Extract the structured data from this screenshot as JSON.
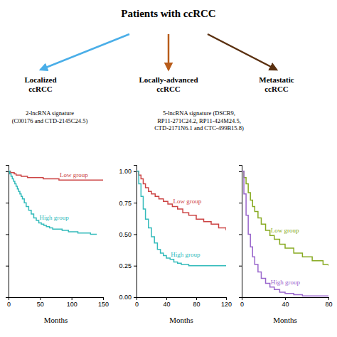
{
  "chart_data": [
    {
      "type": "diagram",
      "title": "Patients with ccRCC",
      "categories": [
        "Localized\nccRCC",
        "Locally-advanced\nccRCC",
        "Metastatic\nccRCC"
      ],
      "colors": [
        "#4aaee8",
        "#b85c1a",
        "#5a3010"
      ],
      "annotations": [
        "2-lncRNA signature\n(C00176 and CTD-2145C24.5)",
        "5-lncRNA signature (DSCR9,\nRP11-271C24.2, RP11-424M24.5,\nCTD-2171N6.1 and CTC-499B15.8)"
      ]
    },
    {
      "type": "step",
      "xlabel": "Months",
      "xlim": [
        0,
        150
      ],
      "ylim": [
        0,
        1.05
      ],
      "xticks": [
        0,
        50,
        100,
        150
      ],
      "yticks": [
        0.25,
        0.5,
        0.75,
        1.0
      ],
      "tick_labels": "x",
      "series": [
        {
          "name": "Low group",
          "color": "#cc4444",
          "x": [
            0,
            3,
            6,
            9,
            12,
            16,
            20,
            25,
            30,
            35,
            40,
            45,
            50,
            55,
            60,
            65,
            70,
            75,
            80,
            85,
            90,
            95,
            100,
            105,
            110,
            115,
            120,
            125,
            130,
            135,
            140,
            145,
            150
          ],
          "values": [
            1.0,
            0.99,
            0.99,
            0.98,
            0.97,
            0.97,
            0.96,
            0.96,
            0.95,
            0.95,
            0.95,
            0.95,
            0.95,
            0.94,
            0.94,
            0.94,
            0.94,
            0.94,
            0.93,
            0.93,
            0.93,
            0.93,
            0.93,
            0.93,
            0.93,
            0.93,
            0.93,
            0.93,
            0.93,
            0.93,
            0.93,
            0.93,
            0.93
          ]
        },
        {
          "name": "High group",
          "color": "#33bbbb",
          "x": [
            0,
            2,
            4,
            6,
            8,
            10,
            12,
            14,
            16,
            18,
            20,
            22,
            25,
            28,
            32,
            36,
            40,
            44,
            48,
            52,
            56,
            60,
            65,
            70,
            75,
            80,
            85,
            90,
            95,
            100,
            110,
            120,
            130,
            140
          ],
          "values": [
            1.0,
            0.98,
            0.96,
            0.94,
            0.92,
            0.9,
            0.88,
            0.86,
            0.84,
            0.82,
            0.8,
            0.78,
            0.75,
            0.72,
            0.69,
            0.66,
            0.63,
            0.61,
            0.59,
            0.58,
            0.57,
            0.56,
            0.55,
            0.54,
            0.54,
            0.54,
            0.53,
            0.53,
            0.52,
            0.52,
            0.51,
            0.51,
            0.5,
            0.5
          ]
        }
      ]
    },
    {
      "type": "step",
      "xlabel": "Months",
      "xlim": [
        0,
        120
      ],
      "ylim": [
        0,
        1.05
      ],
      "xticks": [
        0,
        40,
        80,
        120
      ],
      "yticks": [
        {
          "value": 0.0,
          "label": "0.00"
        },
        {
          "value": 0.25,
          "label": "0.25"
        },
        {
          "value": 0.5,
          "label": "0.50"
        },
        {
          "value": 0.75,
          "label": "0.75"
        },
        {
          "value": 1.0,
          "label": "1.00"
        }
      ],
      "series": [
        {
          "name": "Low group",
          "color": "#cc4444",
          "x": [
            0,
            3,
            6,
            9,
            12,
            16,
            20,
            25,
            30,
            36,
            42,
            48,
            55,
            62,
            70,
            80,
            90,
            100,
            110,
            120
          ],
          "values": [
            1.0,
            0.97,
            0.94,
            0.9,
            0.87,
            0.84,
            0.82,
            0.8,
            0.78,
            0.76,
            0.74,
            0.72,
            0.7,
            0.67,
            0.65,
            0.62,
            0.6,
            0.58,
            0.55,
            0.53
          ]
        },
        {
          "name": "High group",
          "color": "#33bbbb",
          "x": [
            0,
            3,
            6,
            9,
            12,
            16,
            20,
            24,
            28,
            32,
            36,
            40,
            45,
            50,
            55,
            60,
            70,
            80,
            90,
            100,
            110,
            120
          ],
          "values": [
            1.0,
            0.9,
            0.8,
            0.7,
            0.62,
            0.55,
            0.48,
            0.43,
            0.38,
            0.35,
            0.33,
            0.31,
            0.3,
            0.28,
            0.27,
            0.26,
            0.25,
            0.25,
            0.25,
            0.25,
            0.25,
            0.25
          ]
        }
      ]
    },
    {
      "type": "step",
      "xlabel": "Months",
      "xlim": [
        0,
        80
      ],
      "ylim": [
        0,
        1.05
      ],
      "xticks": [
        0,
        40,
        80
      ],
      "yticks": [
        0.25,
        0.5,
        0.75,
        1.0
      ],
      "tick_labels": "x",
      "series": [
        {
          "name": "Low group",
          "color": "#88aa22",
          "x": [
            0,
            2,
            4,
            6,
            8,
            10,
            12,
            15,
            18,
            22,
            26,
            30,
            35,
            40,
            48,
            56,
            65,
            75,
            80
          ],
          "values": [
            1.0,
            0.95,
            0.9,
            0.83,
            0.77,
            0.72,
            0.68,
            0.63,
            0.58,
            0.53,
            0.49,
            0.46,
            0.42,
            0.39,
            0.35,
            0.32,
            0.29,
            0.26,
            0.25
          ]
        },
        {
          "name": "High group",
          "color": "#9966cc",
          "x": [
            0,
            2,
            4,
            6,
            8,
            10,
            12,
            15,
            18,
            22,
            26,
            30,
            35,
            40,
            48,
            56,
            65,
            75,
            80
          ],
          "values": [
            1.0,
            0.82,
            0.65,
            0.5,
            0.4,
            0.32,
            0.26,
            0.2,
            0.15,
            0.11,
            0.08,
            0.06,
            0.04,
            0.03,
            0.02,
            0.01,
            0.01,
            0.01,
            0.01
          ]
        }
      ]
    }
  ]
}
